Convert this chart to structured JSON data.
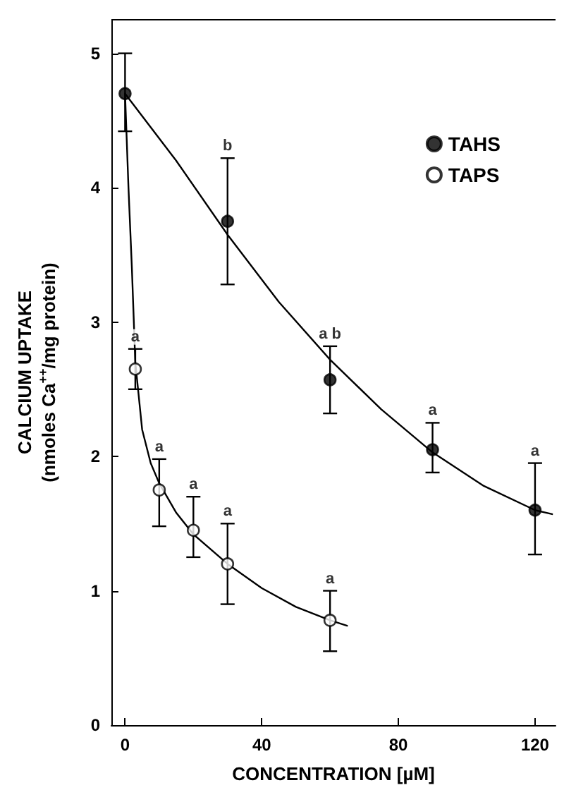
{
  "chart_data": {
    "type": "scatter",
    "xlabel": "CONCENTRATION [µM]",
    "ylabel": "CALCIUM UPTAKE\n(nmoles Ca$^{++}$/mg protein)",
    "xlim": [
      -4,
      126
    ],
    "ylim": [
      0,
      5.25
    ],
    "xticks": [
      0,
      40,
      80,
      120
    ],
    "yticks": [
      0,
      1,
      2,
      3,
      4,
      5
    ],
    "grid": false,
    "legend": "top right",
    "marker": "circle",
    "series": [
      {
        "name": "TAHS",
        "color": "#000000",
        "x": [
          0,
          30,
          60,
          90,
          120
        ],
        "values": [
          4.7,
          3.75,
          2.57,
          2.05,
          1.6
        ],
        "errors": [
          [
            4.42,
            5.0
          ],
          [
            3.28,
            4.22
          ],
          [
            2.32,
            2.82
          ],
          [
            1.88,
            2.25
          ],
          [
            1.27,
            1.95
          ]
        ]
      },
      {
        "name": "TAPS",
        "color": "#ffffff",
        "x": [
          3,
          10,
          20,
          30,
          60
        ],
        "values": [
          2.65,
          1.75,
          1.45,
          1.2,
          0.78
        ],
        "errors": [
          [
            2.5,
            2.8
          ],
          [
            1.48,
            1.98
          ],
          [
            1.25,
            1.7
          ],
          [
            0.9,
            1.5
          ],
          [
            0.55,
            1.0
          ]
        ]
      },
      {
        "type": "line",
        "color": "#000000",
        "marker": "none",
        "x": [
          0,
          15,
          30,
          45,
          60,
          75,
          90,
          105,
          120,
          125
        ],
        "values": [
          4.7,
          4.2,
          3.65,
          3.15,
          2.72,
          2.35,
          2.03,
          1.78,
          1.6,
          1.57
        ]
      },
      {
        "type": "line",
        "color": "#000000",
        "marker": "none",
        "x": [
          0,
          1,
          2,
          3,
          5,
          7.5,
          10,
          15,
          20,
          30,
          40,
          50,
          60,
          65
        ],
        "values": [
          4.7,
          4.0,
          3.4,
          2.7,
          2.2,
          1.95,
          1.8,
          1.58,
          1.42,
          1.2,
          1.02,
          0.88,
          0.78,
          0.74
        ]
      }
    ],
    "annotations": [
      {
        "text": "b",
        "x": 30,
        "y": 4.22
      },
      {
        "text": "a b",
        "x": 60,
        "y": 2.82
      },
      {
        "text": "a",
        "x": 90,
        "y": 2.25
      },
      {
        "text": "a",
        "x": 120,
        "y": 1.95
      },
      {
        "text": "a",
        "x": 3,
        "y": 2.8
      },
      {
        "text": "a",
        "x": 10,
        "y": 1.98
      },
      {
        "text": "a",
        "x": 20,
        "y": 1.7
      },
      {
        "text": "a",
        "x": 30,
        "y": 1.5
      },
      {
        "text": "a",
        "x": 60,
        "y": 1.0
      }
    ]
  }
}
